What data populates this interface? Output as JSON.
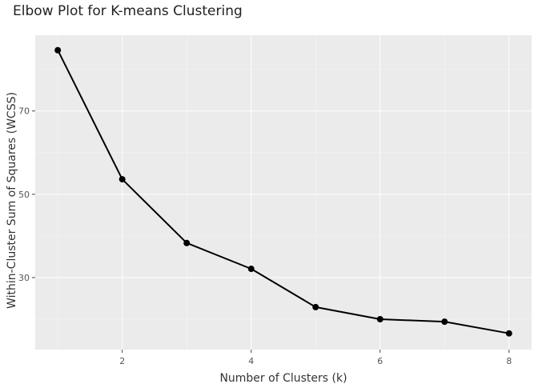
{
  "chart_data": {
    "type": "line",
    "title": "Elbow Plot for K-means Clustering",
    "xlabel": "Number of Clusters (k)",
    "ylabel": "Within-Cluster Sum of Squares (WCSS)",
    "x": [
      1,
      2,
      3,
      4,
      5,
      6,
      7,
      8
    ],
    "y": [
      84.6,
      53.6,
      38.3,
      32.1,
      22.9,
      20.0,
      19.4,
      16.6
    ],
    "xlim": [
      0.65,
      8.35
    ],
    "ylim": [
      12.7,
      88.2
    ],
    "xticks": [
      2,
      4,
      6,
      8
    ],
    "yticks": [
      30,
      50,
      70
    ],
    "grid": true,
    "legend": "none",
    "colors": {
      "panel": "#ebebeb",
      "grid": "#ffffff",
      "line": "#000000",
      "marker": "#000000"
    }
  }
}
